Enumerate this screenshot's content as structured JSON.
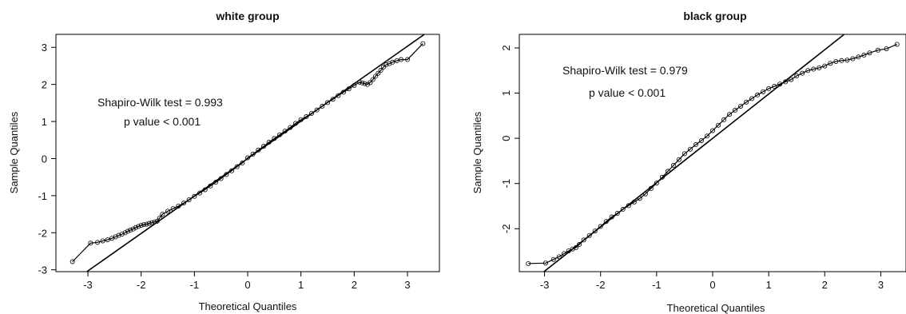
{
  "chart_data": [
    {
      "type": "scatter",
      "title": "white group",
      "xlabel": "Theoretical Quantiles",
      "ylabel": "Sample Quantiles",
      "xlim": [
        -3.6,
        3.6
      ],
      "ylim": [
        -3.05,
        3.35
      ],
      "xticks": [
        -3,
        -2,
        -1,
        0,
        1,
        2,
        3
      ],
      "yticks": [
        -3,
        -2,
        -1,
        0,
        1,
        2,
        3
      ],
      "annotations": [
        "Shapiro-Wilk test = 0.993",
        "p value  < 0.001"
      ],
      "reference_line": {
        "slope": 1.01,
        "intercept": 0.0
      },
      "series": [
        {
          "x": [
            -3.29,
            -2.95,
            -2.82,
            -2.72,
            -2.63,
            -2.55,
            -2.48,
            -2.42,
            -2.36,
            -2.3,
            -2.25,
            -2.2,
            -2.15,
            -2.1,
            -2.05,
            -2.0,
            -1.95,
            -1.9,
            -1.85,
            -1.8,
            -1.75,
            -1.7,
            -1.65,
            -1.6,
            -1.5,
            -1.4,
            -1.3,
            -1.2,
            -1.1,
            -1.0,
            -0.9,
            -0.8,
            -0.7,
            -0.6,
            -0.5,
            -0.4,
            -0.3,
            -0.2,
            -0.1,
            0.0,
            0.1,
            0.2,
            0.3,
            0.4,
            0.5,
            0.6,
            0.7,
            0.8,
            0.9,
            1.0,
            1.1,
            1.2,
            1.3,
            1.4,
            1.5,
            1.6,
            1.7,
            1.8,
            1.9,
            2.0,
            2.1,
            2.15,
            2.2,
            2.25,
            2.3,
            2.35,
            2.4,
            2.45,
            2.5,
            2.55,
            2.6,
            2.66,
            2.72,
            2.8,
            2.88,
            3.0,
            3.29
          ],
          "y": [
            -2.78,
            -2.28,
            -2.26,
            -2.22,
            -2.19,
            -2.15,
            -2.11,
            -2.07,
            -2.04,
            -2.0,
            -1.96,
            -1.93,
            -1.9,
            -1.86,
            -1.83,
            -1.8,
            -1.78,
            -1.77,
            -1.75,
            -1.73,
            -1.71,
            -1.69,
            -1.6,
            -1.5,
            -1.42,
            -1.35,
            -1.28,
            -1.2,
            -1.11,
            -1.02,
            -0.93,
            -0.84,
            -0.74,
            -0.64,
            -0.54,
            -0.43,
            -0.33,
            -0.22,
            -0.12,
            0.02,
            0.12,
            0.23,
            0.33,
            0.44,
            0.54,
            0.64,
            0.74,
            0.84,
            0.95,
            1.05,
            1.13,
            1.22,
            1.31,
            1.41,
            1.51,
            1.6,
            1.7,
            1.79,
            1.88,
            1.97,
            2.06,
            2.04,
            2.02,
            2.0,
            2.05,
            2.13,
            2.22,
            2.3,
            2.38,
            2.47,
            2.53,
            2.56,
            2.6,
            2.64,
            2.67,
            2.67,
            3.1
          ]
        }
      ]
    },
    {
      "type": "scatter",
      "title": "black group",
      "xlabel": "Theoretical Quantiles",
      "ylabel": "Sample Quantiles",
      "xlim": [
        -3.45,
        3.45
      ],
      "ylim": [
        -2.95,
        2.3
      ],
      "xticks": [
        -3,
        -2,
        -1,
        0,
        1,
        2,
        3
      ],
      "yticks": [
        -2,
        -1,
        0,
        1,
        2
      ],
      "annotations": [
        "Shapiro-Wilk test = 0.979",
        "p value  < 0.001"
      ],
      "reference_line": {
        "slope": 0.98,
        "intercept": 0.0
      },
      "series": [
        {
          "x": [
            -3.29,
            -2.98,
            -2.84,
            -2.74,
            -2.65,
            -2.57,
            -2.5,
            -2.44,
            -2.38,
            -2.3,
            -2.2,
            -2.1,
            -2.0,
            -1.9,
            -1.8,
            -1.7,
            -1.6,
            -1.5,
            -1.4,
            -1.3,
            -1.2,
            -1.1,
            -1.0,
            -0.9,
            -0.8,
            -0.7,
            -0.6,
            -0.5,
            -0.4,
            -0.3,
            -0.2,
            -0.1,
            0.0,
            0.1,
            0.2,
            0.3,
            0.4,
            0.5,
            0.6,
            0.7,
            0.8,
            0.9,
            1.0,
            1.1,
            1.2,
            1.3,
            1.4,
            1.5,
            1.6,
            1.7,
            1.8,
            1.9,
            2.0,
            2.1,
            2.2,
            2.3,
            2.4,
            2.5,
            2.6,
            2.7,
            2.8,
            2.95,
            3.1,
            3.29
          ],
          "y": [
            -2.77,
            -2.76,
            -2.68,
            -2.62,
            -2.55,
            -2.49,
            -2.45,
            -2.42,
            -2.35,
            -2.25,
            -2.15,
            -2.05,
            -1.95,
            -1.84,
            -1.74,
            -1.66,
            -1.57,
            -1.49,
            -1.41,
            -1.33,
            -1.23,
            -1.11,
            -0.99,
            -0.86,
            -0.73,
            -0.6,
            -0.47,
            -0.34,
            -0.24,
            -0.14,
            -0.05,
            0.05,
            0.17,
            0.29,
            0.41,
            0.53,
            0.62,
            0.71,
            0.8,
            0.88,
            0.96,
            1.03,
            1.1,
            1.15,
            1.2,
            1.25,
            1.3,
            1.38,
            1.44,
            1.5,
            1.53,
            1.56,
            1.6,
            1.66,
            1.7,
            1.72,
            1.73,
            1.76,
            1.8,
            1.84,
            1.89,
            1.95,
            1.98,
            2.08
          ]
        }
      ]
    }
  ]
}
